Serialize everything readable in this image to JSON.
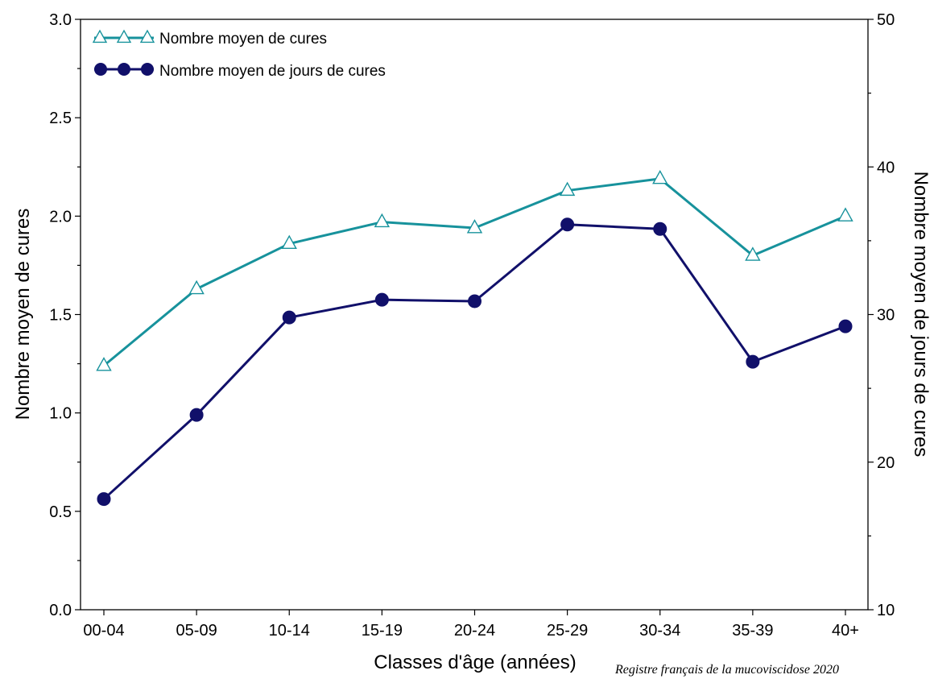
{
  "chart_data": {
    "type": "line",
    "categories": [
      "00-04",
      "05-09",
      "10-14",
      "15-19",
      "20-24",
      "25-29",
      "30-34",
      "35-39",
      "40+"
    ],
    "xlabel": "Classes d'âge (années)",
    "ylabel_left": "Nombre moyen de cures",
    "ylabel_right": "Nombre moyen de jours de cures",
    "ylim_left": [
      0,
      3
    ],
    "yticks_left": [
      "0.0",
      "0.5",
      "1.0",
      "1.5",
      "2.0",
      "2.5",
      "3.0"
    ],
    "ylim_right": [
      10,
      50
    ],
    "yticks_right": [
      "10",
      "20",
      "30",
      "40",
      "50"
    ],
    "grid": false,
    "legend_position": "top-left",
    "series": [
      {
        "name": "Nombre moyen de cures",
        "axis": "left",
        "marker": "open-triangle",
        "color": "#17929c",
        "values": [
          1.24,
          1.63,
          1.86,
          1.97,
          1.94,
          2.13,
          2.19,
          1.8,
          2.0
        ]
      },
      {
        "name": "Nombre moyen de jours de cures",
        "axis": "right",
        "marker": "filled-circle",
        "color": "#11106a",
        "values": [
          17.5,
          23.2,
          29.8,
          31.0,
          30.9,
          36.1,
          35.8,
          26.8,
          29.2
        ]
      }
    ],
    "source": "Registre français de la mucoviscidose 2020"
  }
}
